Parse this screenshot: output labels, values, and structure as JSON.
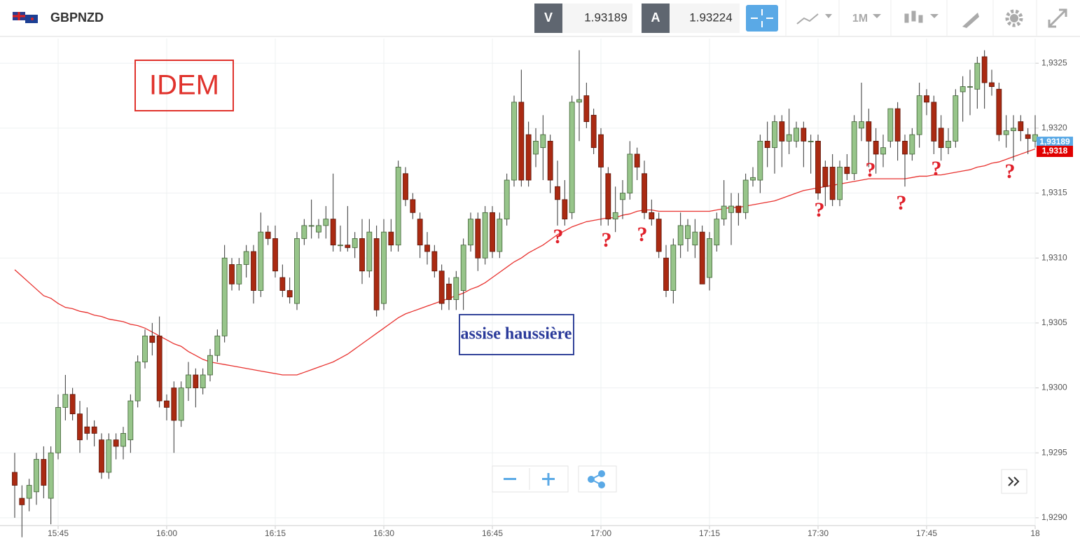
{
  "header": {
    "symbol": "GBPNZD",
    "sell_label": "V",
    "sell_price": "1.93189",
    "buy_label": "A",
    "buy_price": "1.93224",
    "timeframe": "1M"
  },
  "chart_data": {
    "type": "candlestick",
    "categories": [
      null,
      null,
      null,
      null,
      null,
      null,
      "15:45",
      null,
      null,
      null,
      null,
      null,
      null,
      null,
      null,
      null,
      null,
      null,
      null,
      null,
      null,
      "16:00",
      null,
      null,
      null,
      null,
      null,
      null,
      null,
      null,
      null,
      null,
      null,
      null,
      null,
      null,
      "16:15",
      null,
      null,
      null,
      null,
      null,
      null,
      null,
      null,
      null,
      null,
      null,
      null,
      null,
      null,
      "16:30",
      null,
      null,
      null,
      null,
      null,
      null,
      null,
      null,
      null,
      null,
      null,
      null,
      null,
      null,
      "16:45",
      null,
      null,
      null,
      null,
      null,
      null,
      null,
      null,
      null,
      null,
      null,
      null,
      null,
      null,
      "17:00",
      null,
      null,
      null,
      null,
      null,
      null,
      null,
      null,
      null,
      null,
      null,
      null,
      null,
      null,
      "17:15",
      null,
      null,
      null,
      null,
      null,
      null,
      null,
      null,
      null,
      null,
      null,
      null,
      null,
      null,
      "17:30",
      null,
      null,
      null,
      null,
      null,
      null,
      null,
      null,
      null,
      null,
      null,
      null,
      null,
      null,
      "17:45",
      null,
      null,
      null,
      null,
      null,
      null,
      null,
      null,
      null,
      null,
      null,
      null,
      null,
      null,
      "18"
    ],
    "ohlc": [
      [
        1.92935,
        1.9295,
        1.929,
        1.92925
      ],
      [
        1.92915,
        1.92925,
        1.92885,
        1.9291
      ],
      [
        1.92915,
        1.9293,
        1.92905,
        1.92925
      ],
      [
        1.9292,
        1.9295,
        1.9291,
        1.92945
      ],
      [
        1.92945,
        1.92955,
        1.92915,
        1.92925
      ],
      [
        1.92915,
        1.92955,
        1.92895,
        1.9295
      ],
      [
        1.9295,
        1.92995,
        1.92945,
        1.92985
      ],
      [
        1.92985,
        1.9301,
        1.92975,
        1.92995
      ],
      [
        1.92995,
        1.93,
        1.92975,
        1.9298
      ],
      [
        1.9298,
        1.9299,
        1.9295,
        1.9296
      ],
      [
        1.9297,
        1.92985,
        1.9296,
        1.92965
      ],
      [
        1.9297,
        1.92975,
        1.92955,
        1.92965
      ],
      [
        1.9296,
        1.92965,
        1.9293,
        1.92935
      ],
      [
        1.92935,
        1.92965,
        1.9293,
        1.9296
      ],
      [
        1.9296,
        1.92965,
        1.92945,
        1.92955
      ],
      [
        1.92955,
        1.9297,
        1.92945,
        1.92965
      ],
      [
        1.9296,
        1.92995,
        1.9295,
        1.9299
      ],
      [
        1.9299,
        1.93025,
        1.92985,
        1.9302
      ],
      [
        1.9302,
        1.93045,
        1.93015,
        1.9304
      ],
      [
        1.9304,
        1.9305,
        1.93025,
        1.93035
      ],
      [
        1.9304,
        1.93055,
        1.92985,
        1.9299
      ],
      [
        1.9299,
        1.92995,
        1.92975,
        1.92985
      ],
      [
        1.93,
        1.93005,
        1.9295,
        1.92975
      ],
      [
        1.92975,
        1.93005,
        1.9297,
        1.93
      ],
      [
        1.93,
        1.9302,
        1.9299,
        1.9301
      ],
      [
        1.9301,
        1.93015,
        1.92985,
        1.93
      ],
      [
        1.93,
        1.93015,
        1.92995,
        1.9301
      ],
      [
        1.9301,
        1.9303,
        1.93005,
        1.93025
      ],
      [
        1.93025,
        1.93045,
        1.9302,
        1.9304
      ],
      [
        1.9304,
        1.9311,
        1.93035,
        1.931
      ],
      [
        1.93095,
        1.931,
        1.93075,
        1.9308
      ],
      [
        1.9308,
        1.931,
        1.93075,
        1.93095
      ],
      [
        1.93095,
        1.9311,
        1.93085,
        1.93105
      ],
      [
        1.93105,
        1.9311,
        1.93065,
        1.93075
      ],
      [
        1.93075,
        1.93135,
        1.9307,
        1.9312
      ],
      [
        1.9312,
        1.93125,
        1.9311,
        1.93115
      ],
      [
        1.93115,
        1.93125,
        1.93085,
        1.9309
      ],
      [
        1.93085,
        1.93095,
        1.9307,
        1.93075
      ],
      [
        1.93075,
        1.93085,
        1.93065,
        1.9307
      ],
      [
        1.93065,
        1.9312,
        1.9306,
        1.93115
      ],
      [
        1.93115,
        1.9313,
        1.9311,
        1.93125
      ],
      [
        1.93125,
        1.93145,
        1.93115,
        1.93125
      ],
      [
        1.9312,
        1.9313,
        1.93115,
        1.93125
      ],
      [
        1.93125,
        1.9314,
        1.93115,
        1.9313
      ],
      [
        1.9313,
        1.93165,
        1.93105,
        1.9311
      ],
      [
        1.9311,
        1.93125,
        1.93105,
        1.9311
      ],
      [
        1.9311,
        1.9314,
        1.93105,
        1.93108
      ],
      [
        1.93108,
        1.9312,
        1.931,
        1.93115
      ],
      [
        1.93115,
        1.9313,
        1.9308,
        1.9309
      ],
      [
        1.9309,
        1.9313,
        1.93085,
        1.9312
      ],
      [
        1.93115,
        1.93125,
        1.93055,
        1.9306
      ],
      [
        1.93065,
        1.9313,
        1.9306,
        1.9312
      ],
      [
        1.9312,
        1.9313,
        1.93105,
        1.9311
      ],
      [
        1.9311,
        1.93175,
        1.93105,
        1.9317
      ],
      [
        1.93165,
        1.9317,
        1.9314,
        1.93145
      ],
      [
        1.93145,
        1.9315,
        1.9313,
        1.93135
      ],
      [
        1.9313,
        1.93135,
        1.931,
        1.9311
      ],
      [
        1.9311,
        1.9312,
        1.93095,
        1.93105
      ],
      [
        1.93105,
        1.9311,
        1.93085,
        1.9309
      ],
      [
        1.9309,
        1.93095,
        1.9306,
        1.93065
      ],
      [
        1.9308,
        1.93085,
        1.9306,
        1.93068
      ],
      [
        1.93068,
        1.9309,
        1.9306,
        1.93085
      ],
      [
        1.93075,
        1.93115,
        1.9306,
        1.9311
      ],
      [
        1.9311,
        1.93135,
        1.93105,
        1.9313
      ],
      [
        1.9313,
        1.93135,
        1.9309,
        1.931
      ],
      [
        1.931,
        1.9314,
        1.93095,
        1.93135
      ],
      [
        1.93135,
        1.9314,
        1.931,
        1.93105
      ],
      [
        1.93105,
        1.93135,
        1.931,
        1.9313
      ],
      [
        1.9313,
        1.93165,
        1.93125,
        1.9316
      ],
      [
        1.9316,
        1.93225,
        1.93155,
        1.9322
      ],
      [
        1.9322,
        1.93245,
        1.93155,
        1.9316
      ],
      [
        1.93195,
        1.93205,
        1.93155,
        1.9316
      ],
      [
        1.9318,
        1.932,
        1.9317,
        1.9319
      ],
      [
        1.93185,
        1.9321,
        1.9316,
        1.93195
      ],
      [
        1.9319,
        1.93195,
        1.9315,
        1.9316
      ],
      [
        1.93155,
        1.93175,
        1.93125,
        1.93145
      ],
      [
        1.93145,
        1.9316,
        1.93125,
        1.9313
      ],
      [
        1.93135,
        1.93225,
        1.9313,
        1.9322
      ],
      [
        1.9322,
        1.9326,
        1.9319,
        1.93222
      ],
      [
        1.93225,
        1.93235,
        1.932,
        1.93205
      ],
      [
        1.9321,
        1.93215,
        1.9318,
        1.93185
      ],
      [
        1.93195,
        1.932,
        1.93125,
        1.9317
      ],
      [
        1.93165,
        1.9317,
        1.93125,
        1.9313
      ],
      [
        1.9313,
        1.93155,
        1.9312,
        1.93135
      ],
      [
        1.93145,
        1.9316,
        1.9313,
        1.9315
      ],
      [
        1.9315,
        1.9319,
        1.93145,
        1.9318
      ],
      [
        1.9318,
        1.93185,
        1.9316,
        1.9317
      ],
      [
        1.93165,
        1.93175,
        1.9313,
        1.93135
      ],
      [
        1.93135,
        1.93145,
        1.93125,
        1.9313
      ],
      [
        1.9313,
        1.93135,
        1.931,
        1.93105
      ],
      [
        1.931,
        1.9311,
        1.9307,
        1.93075
      ],
      [
        1.93075,
        1.93115,
        1.93065,
        1.9311
      ],
      [
        1.9311,
        1.93135,
        1.931,
        1.93125
      ],
      [
        1.93115,
        1.9313,
        1.93105,
        1.93125
      ],
      [
        1.9311,
        1.9313,
        1.931,
        1.9312
      ],
      [
        1.9312,
        1.93125,
        1.9308,
        1.9308
      ],
      [
        1.93085,
        1.9312,
        1.93075,
        1.93115
      ],
      [
        1.9311,
        1.93135,
        1.93105,
        1.9313
      ],
      [
        1.9313,
        1.9316,
        1.93125,
        1.9314
      ],
      [
        1.93135,
        1.9315,
        1.9311,
        1.9314
      ],
      [
        1.9314,
        1.9315,
        1.93125,
        1.93135
      ],
      [
        1.93135,
        1.93165,
        1.9313,
        1.9316
      ],
      [
        1.9316,
        1.9317,
        1.93155,
        1.93162
      ],
      [
        1.9316,
        1.93195,
        1.9315,
        1.9319
      ],
      [
        1.9319,
        1.93205,
        1.9317,
        1.93185
      ],
      [
        1.93185,
        1.9321,
        1.93165,
        1.93205
      ],
      [
        1.93205,
        1.9321,
        1.9317,
        1.9319
      ],
      [
        1.9319,
        1.93215,
        1.9318,
        1.93195
      ],
      [
        1.9319,
        1.93205,
        1.93185,
        1.932
      ],
      [
        1.932,
        1.93205,
        1.9317,
        1.9319
      ],
      [
        1.9319,
        1.93195,
        1.93165,
        1.9319
      ],
      [
        1.9319,
        1.93195,
        1.93145,
        1.9315
      ],
      [
        1.9317,
        1.93175,
        1.9314,
        1.93155
      ],
      [
        1.9317,
        1.9318,
        1.9314,
        1.93145
      ],
      [
        1.93145,
        1.93175,
        1.9314,
        1.9317
      ],
      [
        1.9317,
        1.9318,
        1.9316,
        1.93165
      ],
      [
        1.93165,
        1.9321,
        1.9316,
        1.93205
      ],
      [
        1.932,
        1.93235,
        1.9319,
        1.93205
      ],
      [
        1.93205,
        1.93215,
        1.9317,
        1.9319
      ],
      [
        1.9319,
        1.932,
        1.93165,
        1.9318
      ],
      [
        1.9318,
        1.93195,
        1.9317,
        1.93185
      ],
      [
        1.9319,
        1.93215,
        1.93185,
        1.93215
      ],
      [
        1.93215,
        1.9322,
        1.93175,
        1.9319
      ],
      [
        1.9319,
        1.93195,
        1.93155,
        1.9318
      ],
      [
        1.9318,
        1.932,
        1.93175,
        1.93195
      ],
      [
        1.93195,
        1.93235,
        1.93185,
        1.93225
      ],
      [
        1.93225,
        1.9323,
        1.9321,
        1.9322
      ],
      [
        1.9322,
        1.93225,
        1.9318,
        1.9319
      ],
      [
        1.932,
        1.9321,
        1.93175,
        1.93185
      ],
      [
        1.93185,
        1.932,
        1.9318,
        1.9319
      ],
      [
        1.9319,
        1.9323,
        1.93185,
        1.93225
      ],
      [
        1.93228,
        1.9324,
        1.93205,
        1.93232
      ],
      [
        1.93232,
        1.93245,
        1.9321,
        1.93232
      ],
      [
        1.9323,
        1.93255,
        1.93215,
        1.9325
      ],
      [
        1.93255,
        1.9326,
        1.93215,
        1.93235
      ],
      [
        1.93235,
        1.93245,
        1.93225,
        1.93232
      ],
      [
        1.9323,
        1.93235,
        1.9319,
        1.93195
      ],
      [
        1.93195,
        1.9321,
        1.93185,
        1.93198
      ],
      [
        1.93198,
        1.9321,
        1.93175,
        1.932
      ],
      [
        1.93205,
        1.9321,
        1.9319,
        1.93198
      ],
      [
        1.93195,
        1.932,
        1.9318,
        1.93192
      ],
      [
        1.9319,
        1.9321,
        1.93185,
        1.93195
      ]
    ],
    "moving_average": [
      1.93091,
      1.93086,
      1.93081,
      1.93076,
      1.93071,
      1.93069,
      1.93065,
      1.93062,
      1.93061,
      1.93059,
      1.93058,
      1.93056,
      1.93055,
      1.93053,
      1.93052,
      1.93051,
      1.93049,
      1.93048,
      1.93046,
      1.93043,
      1.9304,
      1.93037,
      1.93034,
      1.93032,
      1.93028,
      1.93025,
      1.93022,
      1.9302,
      1.93019,
      1.93018,
      1.93017,
      1.93016,
      1.93015,
      1.93014,
      1.93013,
      1.93012,
      1.93011,
      1.9301,
      1.9301,
      1.9301,
      1.93012,
      1.93014,
      1.93016,
      1.93018,
      1.9302,
      1.93023,
      1.93026,
      1.9303,
      1.93034,
      1.93038,
      1.93042,
      1.93046,
      1.9305,
      1.93054,
      1.93057,
      1.93059,
      1.93061,
      1.93063,
      1.93065,
      1.93067,
      1.93069,
      1.93071,
      1.93073,
      1.93076,
      1.93078,
      1.93081,
      1.93085,
      1.93089,
      1.93093,
      1.93097,
      1.931,
      1.93104,
      1.93107,
      1.9311,
      1.93114,
      1.93118,
      1.93121,
      1.93124,
      1.93126,
      1.93128,
      1.93129,
      1.9313,
      1.93131,
      1.93131,
      1.93133,
      1.93134,
      1.93136,
      1.93137,
      1.93137,
      1.93136,
      1.93136,
      1.93136,
      1.93136,
      1.93136,
      1.93136,
      1.93136,
      1.93136,
      1.93137,
      1.93138,
      1.93139,
      1.93139,
      1.9314,
      1.93141,
      1.93142,
      1.93143,
      1.93144,
      1.93146,
      1.93148,
      1.9315,
      1.93152,
      1.93153,
      1.93154,
      1.93155,
      1.93156,
      1.93157,
      1.93158,
      1.93159,
      1.9316,
      1.93161,
      1.93161,
      1.93161,
      1.93161,
      1.93161,
      1.93161,
      1.93162,
      1.93163,
      1.93163,
      1.93164,
      1.93164,
      1.93165,
      1.93166,
      1.93167,
      1.93168,
      1.9317,
      1.93171,
      1.93173,
      1.93174,
      1.93176,
      1.93178,
      1.9318,
      1.93182,
      1.93184
    ],
    "up_color": "#97c58a",
    "down_color": "#aa2a12",
    "ma_color": "#e8322f",
    "ylim": [
      1.92894,
      1.93269
    ],
    "yticks": [
      {
        "value": 1.929,
        "label": "1,9290"
      },
      {
        "value": 1.9295,
        "label": "1,9295"
      },
      {
        "value": 1.93,
        "label": "1,9300"
      },
      {
        "value": 1.9305,
        "label": "1,9305"
      },
      {
        "value": 1.931,
        "label": "1,9310"
      },
      {
        "value": 1.9315,
        "label": "1,9315"
      },
      {
        "value": 1.932,
        "label": "1,9320"
      },
      {
        "value": 1.9325,
        "label": "1,9325"
      }
    ],
    "grid": true,
    "price_tags": [
      "1,93189",
      "1,9318"
    ],
    "annotations": [
      "IDEM",
      "assise haussière"
    ],
    "markers": [
      "?",
      "?",
      "?",
      "?",
      "?",
      "?",
      "?",
      "?"
    ]
  }
}
